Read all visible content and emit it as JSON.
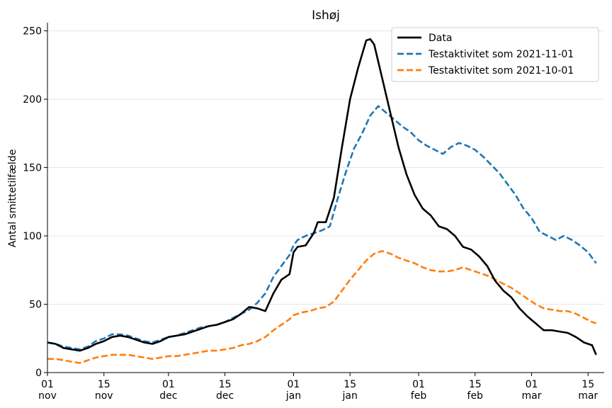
{
  "chart_data": {
    "type": "line",
    "title": "Ishøj",
    "xlabel": "",
    "ylabel": "Antal smittetilfælde",
    "x_range": [
      "2021-11-01",
      "2022-03-19"
    ],
    "ylim": [
      0,
      256
    ],
    "grid": "horizontal",
    "legend_position": "top-right",
    "y_ticks": [
      0,
      50,
      100,
      150,
      200,
      250
    ],
    "x_ticks": [
      {
        "date": "2021-11-01",
        "day": "01",
        "month": "nov"
      },
      {
        "date": "2021-11-15",
        "day": "15",
        "month": "nov"
      },
      {
        "date": "2021-12-01",
        "day": "01",
        "month": "dec"
      },
      {
        "date": "2021-12-15",
        "day": "15",
        "month": "dec"
      },
      {
        "date": "2022-01-01",
        "day": "01",
        "month": "jan"
      },
      {
        "date": "2022-01-15",
        "day": "15",
        "month": "jan"
      },
      {
        "date": "2022-02-01",
        "day": "01",
        "month": "feb"
      },
      {
        "date": "2022-02-15",
        "day": "15",
        "month": "feb"
      },
      {
        "date": "2022-03-01",
        "day": "01",
        "month": "mar"
      },
      {
        "date": "2022-03-15",
        "day": "15",
        "month": "mar"
      }
    ],
    "series": [
      {
        "name": "Data",
        "color": "#000000",
        "style": "solid",
        "points": [
          [
            "2021-11-01",
            22
          ],
          [
            "2021-11-03",
            21
          ],
          [
            "2021-11-05",
            18
          ],
          [
            "2021-11-07",
            17
          ],
          [
            "2021-11-09",
            16
          ],
          [
            "2021-11-11",
            18
          ],
          [
            "2021-11-13",
            21
          ],
          [
            "2021-11-15",
            23
          ],
          [
            "2021-11-17",
            26
          ],
          [
            "2021-11-19",
            27
          ],
          [
            "2021-11-21",
            26
          ],
          [
            "2021-11-23",
            24
          ],
          [
            "2021-11-25",
            22
          ],
          [
            "2021-11-27",
            21
          ],
          [
            "2021-11-29",
            23
          ],
          [
            "2021-12-01",
            26
          ],
          [
            "2021-12-03",
            27
          ],
          [
            "2021-12-05",
            28
          ],
          [
            "2021-12-07",
            30
          ],
          [
            "2021-12-09",
            32
          ],
          [
            "2021-12-11",
            34
          ],
          [
            "2021-12-13",
            35
          ],
          [
            "2021-12-15",
            37
          ],
          [
            "2021-12-17",
            39
          ],
          [
            "2021-12-19",
            43
          ],
          [
            "2021-12-21",
            48
          ],
          [
            "2021-12-23",
            47
          ],
          [
            "2021-12-25",
            45
          ],
          [
            "2021-12-27",
            58
          ],
          [
            "2021-12-29",
            68
          ],
          [
            "2021-12-31",
            72
          ],
          [
            "2022-01-01",
            88
          ],
          [
            "2022-01-02",
            92
          ],
          [
            "2022-01-04",
            93
          ],
          [
            "2022-01-06",
            102
          ],
          [
            "2022-01-07",
            110
          ],
          [
            "2022-01-09",
            110
          ],
          [
            "2022-01-11",
            128
          ],
          [
            "2022-01-13",
            165
          ],
          [
            "2022-01-15",
            200
          ],
          [
            "2022-01-17",
            223
          ],
          [
            "2022-01-19",
            243
          ],
          [
            "2022-01-20",
            244
          ],
          [
            "2022-01-21",
            240
          ],
          [
            "2022-01-23",
            215
          ],
          [
            "2022-01-25",
            190
          ],
          [
            "2022-01-27",
            165
          ],
          [
            "2022-01-29",
            145
          ],
          [
            "2022-01-31",
            130
          ],
          [
            "2022-02-02",
            120
          ],
          [
            "2022-02-04",
            115
          ],
          [
            "2022-02-06",
            107
          ],
          [
            "2022-02-08",
            105
          ],
          [
            "2022-02-10",
            100
          ],
          [
            "2022-02-12",
            92
          ],
          [
            "2022-02-14",
            90
          ],
          [
            "2022-02-16",
            85
          ],
          [
            "2022-02-18",
            78
          ],
          [
            "2022-02-20",
            67
          ],
          [
            "2022-02-22",
            60
          ],
          [
            "2022-02-24",
            55
          ],
          [
            "2022-02-26",
            47
          ],
          [
            "2022-02-28",
            41
          ],
          [
            "2022-03-02",
            36
          ],
          [
            "2022-03-04",
            31
          ],
          [
            "2022-03-06",
            31
          ],
          [
            "2022-03-08",
            30
          ],
          [
            "2022-03-10",
            29
          ],
          [
            "2022-03-12",
            26
          ],
          [
            "2022-03-14",
            22
          ],
          [
            "2022-03-16",
            20
          ],
          [
            "2022-03-17",
            13
          ]
        ]
      },
      {
        "name": "Testaktivitet som 2021-11-01",
        "color": "#1f77b4",
        "style": "dashed",
        "points": [
          [
            "2021-11-01",
            22
          ],
          [
            "2021-11-03",
            21
          ],
          [
            "2021-11-05",
            19
          ],
          [
            "2021-11-07",
            18
          ],
          [
            "2021-11-09",
            17
          ],
          [
            "2021-11-11",
            19
          ],
          [
            "2021-11-13",
            23
          ],
          [
            "2021-11-15",
            25
          ],
          [
            "2021-11-17",
            28
          ],
          [
            "2021-11-19",
            28
          ],
          [
            "2021-11-21",
            27
          ],
          [
            "2021-11-23",
            25
          ],
          [
            "2021-11-25",
            23
          ],
          [
            "2021-11-27",
            22
          ],
          [
            "2021-11-29",
            24
          ],
          [
            "2021-12-01",
            26
          ],
          [
            "2021-12-03",
            27
          ],
          [
            "2021-12-05",
            29
          ],
          [
            "2021-12-07",
            31
          ],
          [
            "2021-12-09",
            33
          ],
          [
            "2021-12-11",
            34
          ],
          [
            "2021-12-13",
            35
          ],
          [
            "2021-12-15",
            37
          ],
          [
            "2021-12-17",
            40
          ],
          [
            "2021-12-19",
            43
          ],
          [
            "2021-12-21",
            46
          ],
          [
            "2021-12-23",
            51
          ],
          [
            "2021-12-25",
            58
          ],
          [
            "2021-12-27",
            70
          ],
          [
            "2021-12-29",
            78
          ],
          [
            "2021-12-31",
            86
          ],
          [
            "2022-01-01",
            93
          ],
          [
            "2022-01-02",
            97
          ],
          [
            "2022-01-04",
            100
          ],
          [
            "2022-01-06",
            102
          ],
          [
            "2022-01-08",
            104
          ],
          [
            "2022-01-10",
            107
          ],
          [
            "2022-01-12",
            128
          ],
          [
            "2022-01-14",
            147
          ],
          [
            "2022-01-16",
            164
          ],
          [
            "2022-01-18",
            175
          ],
          [
            "2022-01-20",
            188
          ],
          [
            "2022-01-22",
            195
          ],
          [
            "2022-01-24",
            190
          ],
          [
            "2022-01-26",
            185
          ],
          [
            "2022-01-28",
            180
          ],
          [
            "2022-01-30",
            176
          ],
          [
            "2022-02-01",
            170
          ],
          [
            "2022-02-03",
            166
          ],
          [
            "2022-02-05",
            163
          ],
          [
            "2022-02-07",
            160
          ],
          [
            "2022-02-09",
            165
          ],
          [
            "2022-02-11",
            168
          ],
          [
            "2022-02-13",
            166
          ],
          [
            "2022-02-15",
            163
          ],
          [
            "2022-02-17",
            158
          ],
          [
            "2022-02-19",
            152
          ],
          [
            "2022-02-21",
            146
          ],
          [
            "2022-02-23",
            138
          ],
          [
            "2022-02-25",
            130
          ],
          [
            "2022-02-27",
            120
          ],
          [
            "2022-03-01",
            113
          ],
          [
            "2022-03-03",
            103
          ],
          [
            "2022-03-05",
            100
          ],
          [
            "2022-03-07",
            97
          ],
          [
            "2022-03-09",
            100
          ],
          [
            "2022-03-11",
            97
          ],
          [
            "2022-03-13",
            93
          ],
          [
            "2022-03-15",
            88
          ],
          [
            "2022-03-17",
            80
          ]
        ]
      },
      {
        "name": "Testaktivitet som 2021-10-01",
        "color": "#ff7f0e",
        "style": "dashed",
        "points": [
          [
            "2021-11-01",
            10
          ],
          [
            "2021-11-03",
            10
          ],
          [
            "2021-11-05",
            9
          ],
          [
            "2021-11-07",
            8
          ],
          [
            "2021-11-09",
            7
          ],
          [
            "2021-11-11",
            9
          ],
          [
            "2021-11-13",
            11
          ],
          [
            "2021-11-15",
            12
          ],
          [
            "2021-11-17",
            13
          ],
          [
            "2021-11-19",
            13
          ],
          [
            "2021-11-21",
            13
          ],
          [
            "2021-11-23",
            12
          ],
          [
            "2021-11-25",
            11
          ],
          [
            "2021-11-27",
            10
          ],
          [
            "2021-11-29",
            11
          ],
          [
            "2021-12-01",
            12
          ],
          [
            "2021-12-03",
            12
          ],
          [
            "2021-12-05",
            13
          ],
          [
            "2021-12-07",
            14
          ],
          [
            "2021-12-09",
            15
          ],
          [
            "2021-12-11",
            16
          ],
          [
            "2021-12-13",
            16
          ],
          [
            "2021-12-15",
            17
          ],
          [
            "2021-12-17",
            18
          ],
          [
            "2021-12-19",
            20
          ],
          [
            "2021-12-21",
            21
          ],
          [
            "2021-12-23",
            23
          ],
          [
            "2021-12-25",
            26
          ],
          [
            "2021-12-27",
            31
          ],
          [
            "2021-12-29",
            35
          ],
          [
            "2021-12-31",
            39
          ],
          [
            "2022-01-01",
            42
          ],
          [
            "2022-01-03",
            44
          ],
          [
            "2022-01-05",
            45
          ],
          [
            "2022-01-07",
            47
          ],
          [
            "2022-01-09",
            48
          ],
          [
            "2022-01-11",
            52
          ],
          [
            "2022-01-13",
            60
          ],
          [
            "2022-01-15",
            68
          ],
          [
            "2022-01-17",
            75
          ],
          [
            "2022-01-19",
            82
          ],
          [
            "2022-01-21",
            87
          ],
          [
            "2022-01-23",
            89
          ],
          [
            "2022-01-25",
            87
          ],
          [
            "2022-01-27",
            84
          ],
          [
            "2022-01-29",
            82
          ],
          [
            "2022-01-31",
            80
          ],
          [
            "2022-02-02",
            77
          ],
          [
            "2022-02-04",
            75
          ],
          [
            "2022-02-06",
            74
          ],
          [
            "2022-02-08",
            74
          ],
          [
            "2022-02-10",
            75
          ],
          [
            "2022-02-12",
            77
          ],
          [
            "2022-02-14",
            75
          ],
          [
            "2022-02-16",
            73
          ],
          [
            "2022-02-18",
            71
          ],
          [
            "2022-02-20",
            68
          ],
          [
            "2022-02-22",
            65
          ],
          [
            "2022-02-24",
            62
          ],
          [
            "2022-02-26",
            58
          ],
          [
            "2022-02-28",
            54
          ],
          [
            "2022-03-02",
            50
          ],
          [
            "2022-03-04",
            47
          ],
          [
            "2022-03-06",
            46
          ],
          [
            "2022-03-08",
            45
          ],
          [
            "2022-03-10",
            45
          ],
          [
            "2022-03-12",
            43
          ],
          [
            "2022-03-14",
            40
          ],
          [
            "2022-03-16",
            37
          ],
          [
            "2022-03-17",
            36
          ]
        ]
      }
    ]
  }
}
